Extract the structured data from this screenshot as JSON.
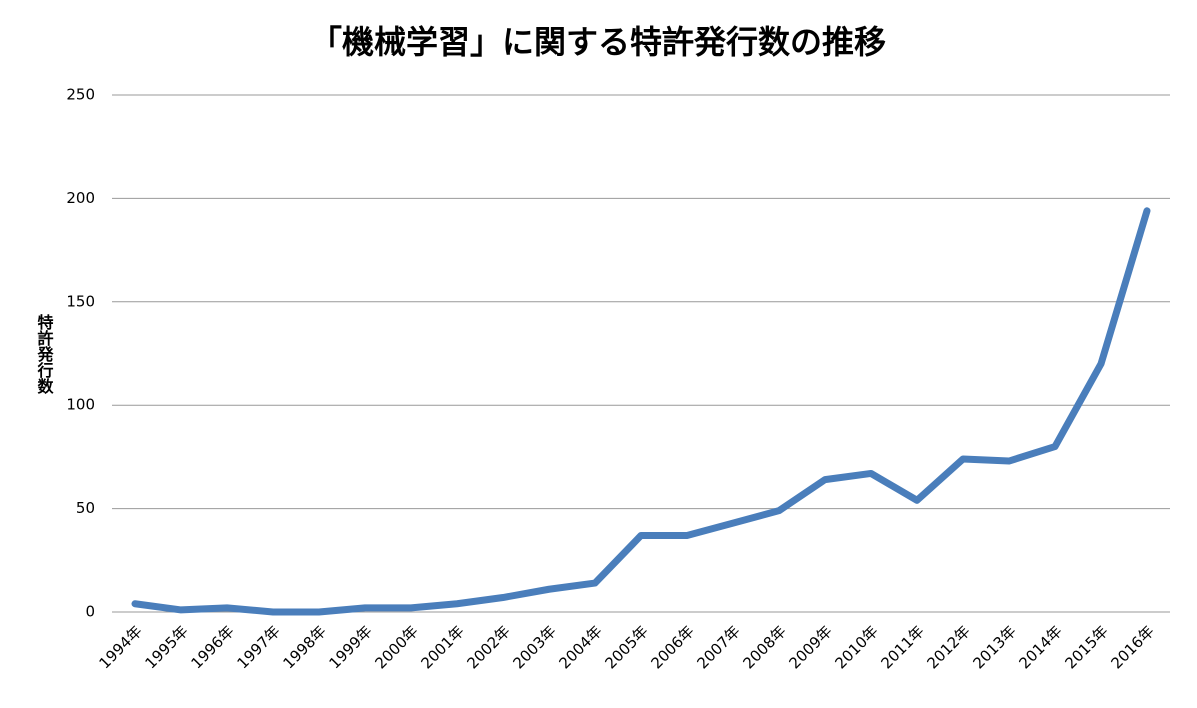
{
  "chart_data": {
    "type": "line",
    "title": "「機械学習」に関する特許発行数の推移",
    "y_label": "特許発行数",
    "categories": [
      "1994年",
      "1995年",
      "1996年",
      "1997年",
      "1998年",
      "1999年",
      "2000年",
      "2001年",
      "2002年",
      "2003年",
      "2004年",
      "2005年",
      "2006年",
      "2007年",
      "2008年",
      "2009年",
      "2010年",
      "2011年",
      "2012年",
      "2013年",
      "2014年",
      "2015年",
      "2016年"
    ],
    "series": [
      {
        "name": "特許発行数",
        "color": "#4a7ebb",
        "values": [
          4,
          1,
          2,
          0,
          0,
          2,
          2,
          4,
          7,
          11,
          14,
          37,
          37,
          43,
          49,
          64,
          67,
          54,
          74,
          73,
          80,
          120,
          194
        ]
      }
    ],
    "ylim": [
      0,
      250
    ],
    "yticks": [
      0,
      50,
      100,
      150,
      200,
      250
    ],
    "grid": true
  }
}
